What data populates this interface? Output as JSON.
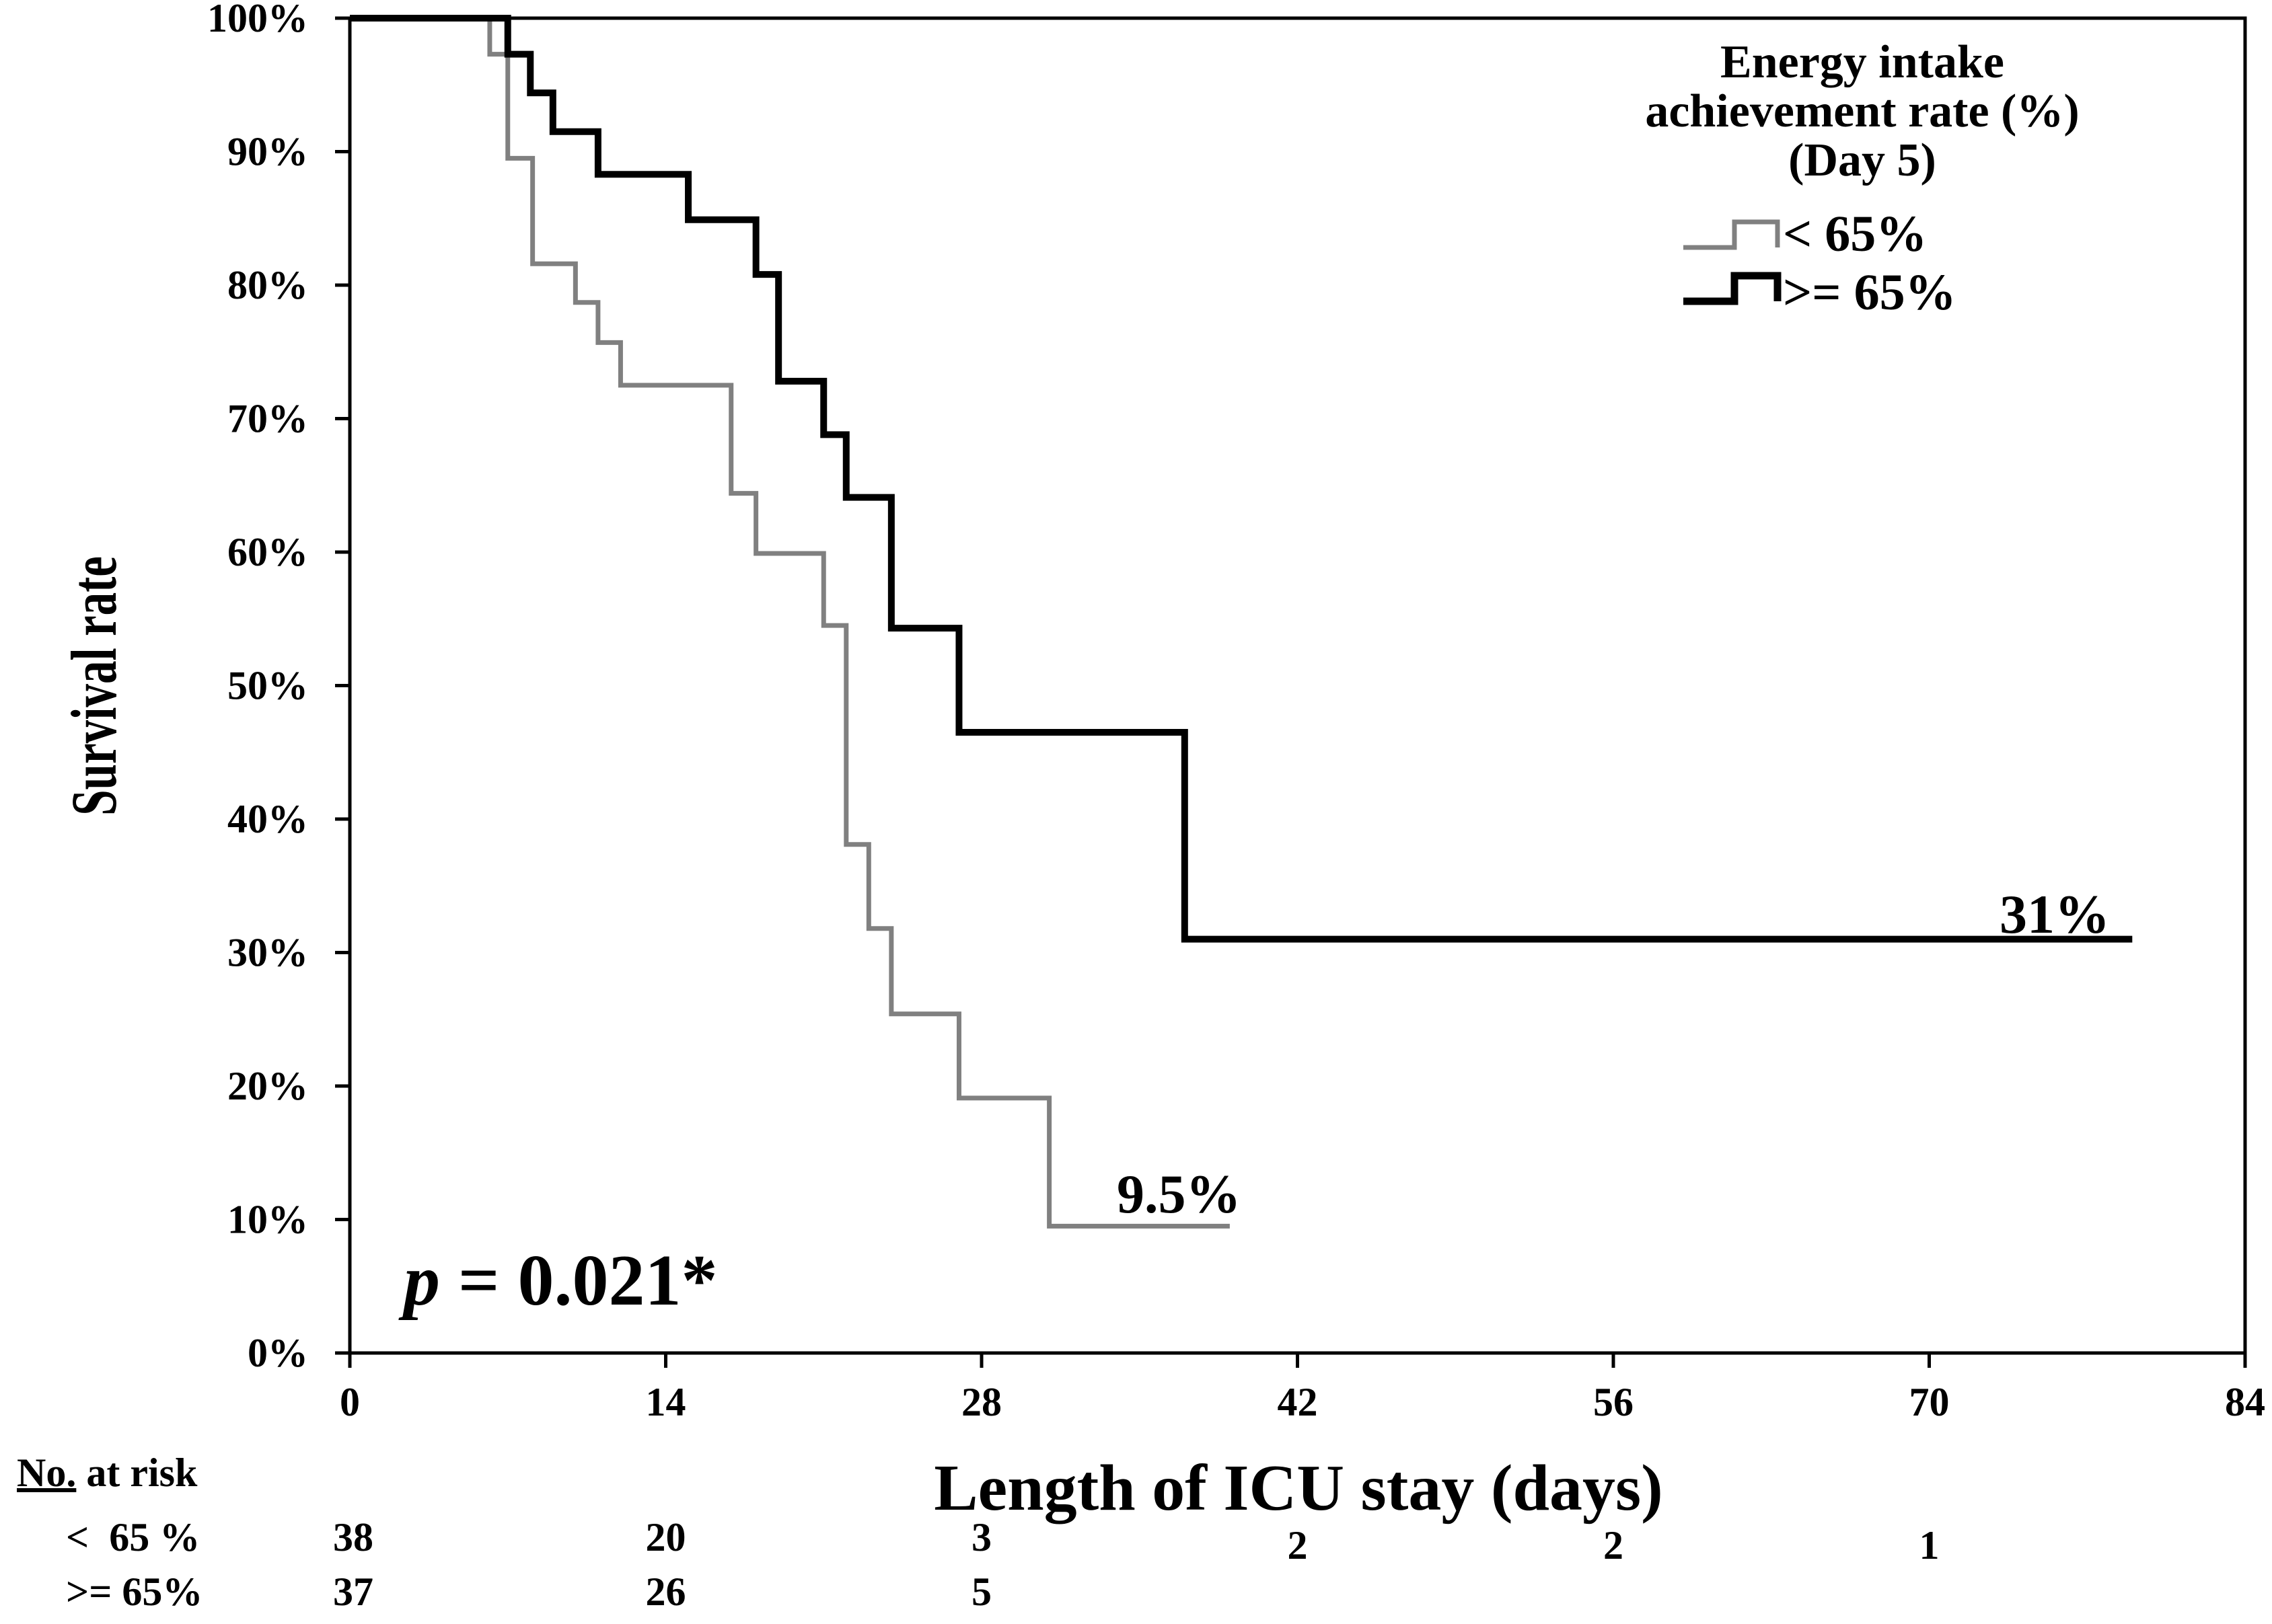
{
  "chart_data": {
    "type": "line",
    "subtype": "kaplan-meier-step",
    "title": "",
    "xlabel": "Length of ICU stay (days)",
    "ylabel": "Survival rate",
    "xlim": [
      0,
      84
    ],
    "ylim": [
      0,
      100
    ],
    "x_ticks": [
      0,
      14,
      28,
      42,
      56,
      70,
      84
    ],
    "x_tick_labels": [
      "0",
      "14",
      "28",
      "42",
      "56",
      "70",
      "84"
    ],
    "y_ticks": [
      0,
      10,
      20,
      30,
      40,
      50,
      60,
      70,
      80,
      90,
      100
    ],
    "y_tick_labels": [
      "0%",
      "10%",
      "20%",
      "30%",
      "40%",
      "50%",
      "60%",
      "70%",
      "80%",
      "90%",
      "100%"
    ],
    "legend": {
      "title_lines": [
        "Energy intake",
        "achievement rate (%)",
        "(Day 5)"
      ],
      "placement": "top-right",
      "entries": [
        "< 65%",
        ">= 65%"
      ]
    },
    "series": [
      {
        "name": "< 65%",
        "color": "#808080",
        "end_label": "9.5%",
        "steps": [
          [
            0,
            100
          ],
          [
            6.2,
            97.3
          ],
          [
            7.0,
            89.5
          ],
          [
            8.1,
            81.6
          ],
          [
            10.0,
            78.7
          ],
          [
            11.0,
            75.7
          ],
          [
            12.0,
            72.5
          ],
          [
            16.9,
            64.4
          ],
          [
            18.0,
            59.9
          ],
          [
            21.0,
            54.5
          ],
          [
            22.0,
            38.1
          ],
          [
            23.0,
            31.8
          ],
          [
            24.0,
            25.4
          ],
          [
            27.0,
            19.1
          ],
          [
            31.0,
            9.5
          ],
          [
            39.0,
            9.5
          ]
        ]
      },
      {
        "name": ">= 65%",
        "color": "#000000",
        "end_label": "31%",
        "steps": [
          [
            0,
            100
          ],
          [
            7.0,
            97.3
          ],
          [
            8.0,
            94.4
          ],
          [
            9.0,
            91.5
          ],
          [
            11.0,
            88.3
          ],
          [
            15.0,
            84.9
          ],
          [
            18.0,
            80.8
          ],
          [
            19.0,
            72.8
          ],
          [
            21.0,
            68.8
          ],
          [
            22.0,
            64.1
          ],
          [
            24.0,
            54.3
          ],
          [
            27.0,
            46.5
          ],
          [
            37.0,
            31.0
          ],
          [
            79.0,
            31.0
          ]
        ]
      }
    ],
    "annotations": [
      {
        "text": "p",
        "suffix": " = 0.021*"
      }
    ],
    "risk_table": {
      "header_underlined": "No.",
      "header_rest": " at risk",
      "rows": [
        {
          "label": "<  65 %",
          "values": [
            "38",
            "20",
            "3",
            "2",
            "2",
            "1"
          ]
        },
        {
          "label": ">= 65%",
          "values": [
            "37",
            "26",
            "5"
          ]
        }
      ]
    }
  }
}
